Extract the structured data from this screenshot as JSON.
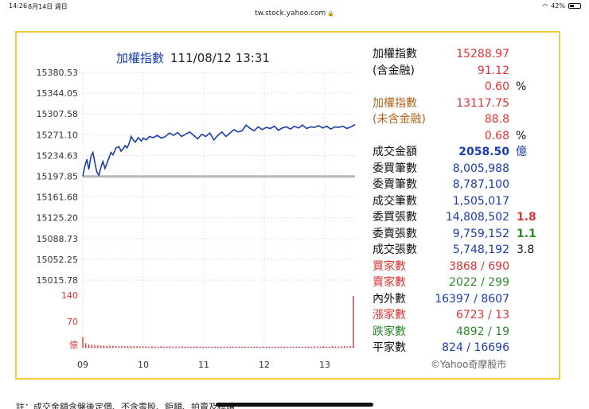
{
  "status": {
    "time": "14:26",
    "date": "8月14日 週日",
    "battery": "42%",
    "battery_level": 0.42
  },
  "url": "tw.stock.yahoo.com",
  "chart_title": {
    "name": "加權指數",
    "datetime": "111/08/12 13:31"
  },
  "stats": {
    "index_label": "加權指數",
    "index_value": "15288.97",
    "incl_label": "(含金融)",
    "incl_change": "91.12",
    "incl_pct": "0.60",
    "pct_unit": "%",
    "ex_label": "加權指數",
    "ex_value": "13117.75",
    "ex_sub_label": "(未含金融)",
    "ex_change": "88.8",
    "ex_pct": "0.68",
    "ex_pct_unit": "%",
    "turnover_label": "成交金額",
    "turnover_value": "2058.50",
    "turnover_unit": "億",
    "bid_count_label": "委買筆數",
    "bid_count": "8,005,988",
    "ask_count_label": "委賣筆數",
    "ask_count": "8,787,100",
    "deal_count_label": "成交筆數",
    "deal_count": "1,505,017",
    "bid_vol_label": "委買張數",
    "bid_vol": "14,808,502",
    "bid_vol_ratio": "1.8",
    "ask_vol_label": "委賣張數",
    "ask_vol": "9,759,152",
    "ask_vol_ratio": "1.1",
    "deal_vol_label": "成交張數",
    "deal_vol": "5,748,192",
    "deal_vol_ratio": "3.8",
    "buyers_label": "買家數",
    "buyers": "3868 / 690",
    "sellers_label": "賣家數",
    "sellers": "2022 / 299",
    "inout_label": "內外數",
    "inout": "16397 / 8607",
    "up_label": "漲家數",
    "up": "6723 / 13",
    "down_label": "跌家數",
    "down": "4892 / 19",
    "flat_label": "平家數",
    "flat": "824 / 16696"
  },
  "source": "©Yahoo奇摩股市",
  "footnote": "註：成交金額含盤後定價、不含零股、鉅額、拍賣及標購",
  "colors": {
    "line": "#1a3da8",
    "reference": "#b8b8b8",
    "volume": "#d33",
    "frame": "#f3cd3c"
  },
  "chart_data": {
    "type": "line",
    "title": "加權指數 111/08/12 13:31",
    "x_ticks": [
      "09",
      "10",
      "11",
      "12",
      "13"
    ],
    "y_ticks": [
      "15380.53",
      "15344.05",
      "15307.58",
      "15271.10",
      "15234.63",
      "15197.85",
      "15161.68",
      "15125.20",
      "15088.73",
      "15052.25",
      "15015.78"
    ],
    "ylim": [
      15015.78,
      15380.53
    ],
    "reference_close": 15197.85,
    "series": [
      {
        "x_minutes": [
          0,
          2,
          4,
          6,
          8,
          10,
          12,
          14,
          16,
          18,
          20,
          22,
          25,
          28,
          30,
          33,
          36,
          38,
          40,
          42,
          44,
          46,
          48,
          50,
          52,
          55,
          58,
          60,
          63,
          66,
          70,
          74,
          78,
          82,
          86,
          90,
          94,
          98,
          102,
          106,
          110,
          114,
          118,
          122,
          126,
          130,
          134,
          138,
          142,
          146,
          150,
          154,
          158,
          162,
          166,
          170,
          174,
          178,
          182,
          186,
          190,
          194,
          198,
          202,
          206,
          210,
          214,
          218,
          222,
          226,
          230,
          234,
          238,
          242,
          246,
          250,
          254,
          258,
          262,
          266,
          270
        ],
        "values": [
          15198,
          15215,
          15228,
          15210,
          15232,
          15240,
          15222,
          15205,
          15200,
          15214,
          15224,
          15212,
          15226,
          15240,
          15236,
          15248,
          15250,
          15242,
          15246,
          15252,
          15248,
          15256,
          15268,
          15262,
          15258,
          15266,
          15260,
          15265,
          15262,
          15268,
          15266,
          15270,
          15265,
          15268,
          15274,
          15270,
          15275,
          15268,
          15272,
          15276,
          15270,
          15264,
          15272,
          15268,
          15274,
          15262,
          15270,
          15276,
          15268,
          15274,
          15280,
          15276,
          15278,
          15288,
          15282,
          15278,
          15285,
          15280,
          15284,
          15282,
          15286,
          15279,
          15283,
          15285,
          15281,
          15286,
          15283,
          15288,
          15282,
          15285,
          15284,
          15287,
          15283,
          15286,
          15281,
          15285,
          15284,
          15286,
          15282,
          15285,
          15289
        ]
      }
    ],
    "volume": {
      "y_ticks": [
        "140",
        "70",
        "億"
      ],
      "ylim": [
        0,
        140
      ],
      "values": [
        28,
        12,
        9,
        8,
        7,
        7,
        6,
        6,
        5,
        6,
        5,
        5,
        4,
        5,
        4,
        4,
        5,
        4,
        4,
        3,
        4,
        4,
        3,
        4,
        3,
        3,
        4,
        3,
        3,
        4,
        3,
        3,
        3,
        4,
        3,
        3,
        3,
        3,
        4,
        3,
        3,
        3,
        3,
        3,
        3,
        3,
        3,
        3,
        3,
        3,
        3,
        3,
        3,
        3,
        3,
        3,
        3,
        3,
        3,
        3,
        3,
        3,
        3,
        3,
        3,
        3,
        3,
        3,
        3,
        3,
        3,
        3,
        3,
        3,
        3,
        3,
        3,
        4,
        3,
        3,
        4,
        3,
        3,
        5,
        3,
        3,
        4,
        4,
        3,
        4,
        138
      ]
    }
  }
}
